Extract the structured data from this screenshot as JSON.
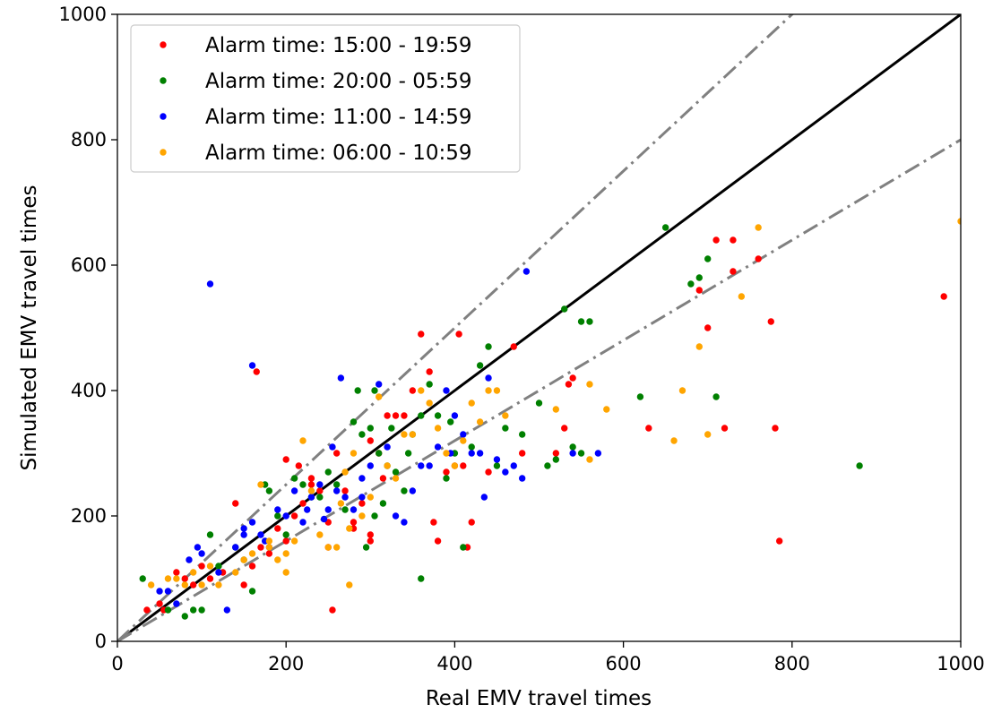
{
  "chart_data": {
    "type": "scatter",
    "xlabel": "Real EMV travel times",
    "ylabel": "Simulated EMV travel times",
    "xlim": [
      0,
      1000
    ],
    "ylim": [
      0,
      1000
    ],
    "xticks": [
      0,
      200,
      400,
      600,
      800,
      1000
    ],
    "yticks": [
      0,
      200,
      400,
      600,
      800,
      1000
    ],
    "grid": false,
    "legend_position": "top-left",
    "reference_lines": [
      {
        "style": "solid",
        "color": "#000000",
        "slope": 1.0
      },
      {
        "style": "dashdot",
        "color": "#808080",
        "slope": 1.25
      },
      {
        "style": "dashdot",
        "color": "#808080",
        "slope": 0.8
      }
    ],
    "series": [
      {
        "name": "Alarm time: 15:00 - 19:59",
        "color": "#ff0000",
        "points": [
          [
            35,
            50
          ],
          [
            50,
            60
          ],
          [
            55,
            50
          ],
          [
            70,
            110
          ],
          [
            80,
            100
          ],
          [
            90,
            90
          ],
          [
            100,
            120
          ],
          [
            110,
            100
          ],
          [
            125,
            110
          ],
          [
            140,
            220
          ],
          [
            150,
            90
          ],
          [
            160,
            120
          ],
          [
            165,
            430
          ],
          [
            170,
            150
          ],
          [
            180,
            140
          ],
          [
            190,
            180
          ],
          [
            200,
            160
          ],
          [
            200,
            290
          ],
          [
            210,
            200
          ],
          [
            220,
            220
          ],
          [
            230,
            260
          ],
          [
            240,
            240
          ],
          [
            250,
            150
          ],
          [
            255,
            50
          ],
          [
            260,
            300
          ],
          [
            270,
            240
          ],
          [
            280,
            190
          ],
          [
            290,
            220
          ],
          [
            300,
            170
          ],
          [
            300,
            320
          ],
          [
            310,
            300
          ],
          [
            315,
            260
          ],
          [
            320,
            360
          ],
          [
            330,
            360
          ],
          [
            340,
            360
          ],
          [
            350,
            400
          ],
          [
            360,
            490
          ],
          [
            370,
            430
          ],
          [
            375,
            190
          ],
          [
            380,
            160
          ],
          [
            390,
            270
          ],
          [
            400,
            280
          ],
          [
            405,
            490
          ],
          [
            410,
            280
          ],
          [
            415,
            150
          ],
          [
            420,
            190
          ],
          [
            440,
            270
          ],
          [
            470,
            470
          ],
          [
            480,
            300
          ],
          [
            520,
            300
          ],
          [
            530,
            340
          ],
          [
            535,
            410
          ],
          [
            540,
            420
          ],
          [
            630,
            340
          ],
          [
            690,
            560
          ],
          [
            700,
            500
          ],
          [
            710,
            640
          ],
          [
            720,
            340
          ],
          [
            730,
            590
          ],
          [
            730,
            640
          ],
          [
            760,
            610
          ],
          [
            775,
            510
          ],
          [
            780,
            340
          ],
          [
            785,
            160
          ],
          [
            980,
            550
          ],
          [
            300,
            160
          ],
          [
            280,
            180
          ],
          [
            250,
            190
          ],
          [
            230,
            250
          ],
          [
            215,
            280
          ]
        ]
      },
      {
        "name": "Alarm time: 20:00 - 05:59",
        "color": "#008000",
        "points": [
          [
            30,
            100
          ],
          [
            60,
            50
          ],
          [
            80,
            40
          ],
          [
            90,
            50
          ],
          [
            100,
            50
          ],
          [
            110,
            170
          ],
          [
            120,
            120
          ],
          [
            140,
            150
          ],
          [
            150,
            130
          ],
          [
            160,
            80
          ],
          [
            175,
            250
          ],
          [
            180,
            240
          ],
          [
            190,
            200
          ],
          [
            200,
            170
          ],
          [
            210,
            260
          ],
          [
            220,
            250
          ],
          [
            230,
            230
          ],
          [
            240,
            230
          ],
          [
            250,
            270
          ],
          [
            260,
            250
          ],
          [
            270,
            210
          ],
          [
            280,
            350
          ],
          [
            285,
            400
          ],
          [
            290,
            330
          ],
          [
            300,
            340
          ],
          [
            305,
            400
          ],
          [
            310,
            300
          ],
          [
            320,
            280
          ],
          [
            330,
            270
          ],
          [
            340,
            240
          ],
          [
            350,
            330
          ],
          [
            360,
            100
          ],
          [
            370,
            410
          ],
          [
            380,
            360
          ],
          [
            390,
            260
          ],
          [
            400,
            300
          ],
          [
            410,
            150
          ],
          [
            420,
            310
          ],
          [
            430,
            440
          ],
          [
            440,
            470
          ],
          [
            450,
            280
          ],
          [
            460,
            340
          ],
          [
            480,
            330
          ],
          [
            500,
            380
          ],
          [
            510,
            280
          ],
          [
            520,
            290
          ],
          [
            530,
            530
          ],
          [
            540,
            310
          ],
          [
            550,
            300
          ],
          [
            550,
            510
          ],
          [
            560,
            510
          ],
          [
            620,
            390
          ],
          [
            650,
            660
          ],
          [
            680,
            570
          ],
          [
            690,
            580
          ],
          [
            700,
            610
          ],
          [
            710,
            390
          ],
          [
            880,
            280
          ],
          [
            295,
            150
          ],
          [
            305,
            200
          ],
          [
            315,
            220
          ],
          [
            325,
            340
          ],
          [
            345,
            300
          ],
          [
            360,
            360
          ],
          [
            395,
            350
          ]
        ]
      },
      {
        "name": "Alarm time: 11:00 - 14:59",
        "color": "#0000ff",
        "points": [
          [
            50,
            80
          ],
          [
            60,
            80
          ],
          [
            70,
            60
          ],
          [
            85,
            130
          ],
          [
            95,
            150
          ],
          [
            100,
            140
          ],
          [
            110,
            570
          ],
          [
            120,
            110
          ],
          [
            130,
            50
          ],
          [
            140,
            150
          ],
          [
            150,
            170
          ],
          [
            160,
            190
          ],
          [
            160,
            440
          ],
          [
            170,
            170
          ],
          [
            180,
            150
          ],
          [
            190,
            210
          ],
          [
            200,
            200
          ],
          [
            210,
            240
          ],
          [
            220,
            190
          ],
          [
            230,
            230
          ],
          [
            240,
            250
          ],
          [
            250,
            210
          ],
          [
            255,
            310
          ],
          [
            260,
            240
          ],
          [
            265,
            420
          ],
          [
            270,
            230
          ],
          [
            280,
            210
          ],
          [
            290,
            230
          ],
          [
            300,
            280
          ],
          [
            310,
            410
          ],
          [
            320,
            310
          ],
          [
            330,
            200
          ],
          [
            340,
            190
          ],
          [
            350,
            240
          ],
          [
            360,
            280
          ],
          [
            370,
            280
          ],
          [
            380,
            310
          ],
          [
            390,
            400
          ],
          [
            395,
            300
          ],
          [
            400,
            360
          ],
          [
            410,
            330
          ],
          [
            420,
            300
          ],
          [
            430,
            300
          ],
          [
            435,
            230
          ],
          [
            440,
            420
          ],
          [
            450,
            290
          ],
          [
            460,
            270
          ],
          [
            470,
            280
          ],
          [
            480,
            260
          ],
          [
            485,
            590
          ],
          [
            540,
            300
          ],
          [
            570,
            300
          ],
          [
            150,
            180
          ],
          [
            175,
            160
          ],
          [
            225,
            210
          ],
          [
            245,
            195
          ],
          [
            290,
            260
          ]
        ]
      },
      {
        "name": "Alarm time: 06:00 - 10:59",
        "color": "#ffa500",
        "points": [
          [
            40,
            90
          ],
          [
            60,
            100
          ],
          [
            70,
            100
          ],
          [
            80,
            90
          ],
          [
            90,
            110
          ],
          [
            100,
            90
          ],
          [
            110,
            120
          ],
          [
            120,
            90
          ],
          [
            140,
            110
          ],
          [
            150,
            130
          ],
          [
            160,
            140
          ],
          [
            170,
            250
          ],
          [
            180,
            150
          ],
          [
            190,
            130
          ],
          [
            200,
            140
          ],
          [
            210,
            160
          ],
          [
            220,
            320
          ],
          [
            230,
            240
          ],
          [
            240,
            170
          ],
          [
            250,
            150
          ],
          [
            260,
            150
          ],
          [
            270,
            270
          ],
          [
            275,
            90
          ],
          [
            280,
            300
          ],
          [
            290,
            200
          ],
          [
            300,
            230
          ],
          [
            310,
            390
          ],
          [
            320,
            280
          ],
          [
            330,
            260
          ],
          [
            340,
            330
          ],
          [
            350,
            330
          ],
          [
            360,
            400
          ],
          [
            370,
            380
          ],
          [
            380,
            340
          ],
          [
            390,
            300
          ],
          [
            400,
            280
          ],
          [
            410,
            320
          ],
          [
            420,
            380
          ],
          [
            430,
            350
          ],
          [
            440,
            400
          ],
          [
            450,
            400
          ],
          [
            460,
            360
          ],
          [
            520,
            370
          ],
          [
            560,
            290
          ],
          [
            560,
            410
          ],
          [
            580,
            370
          ],
          [
            660,
            320
          ],
          [
            670,
            400
          ],
          [
            690,
            470
          ],
          [
            700,
            330
          ],
          [
            740,
            550
          ],
          [
            760,
            660
          ],
          [
            1000,
            670
          ],
          [
            180,
            160
          ],
          [
            200,
            110
          ],
          [
            265,
            220
          ],
          [
            275,
            180
          ]
        ]
      }
    ]
  }
}
